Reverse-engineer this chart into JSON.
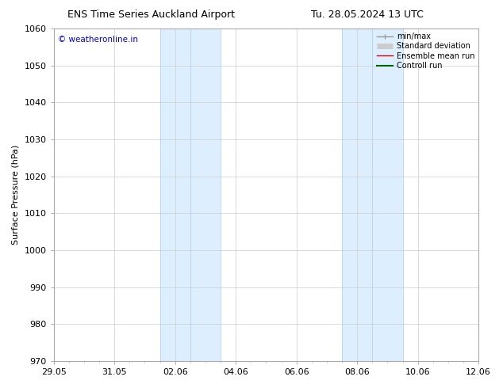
{
  "title": "ENS Time Series Auckland Airport",
  "title2": "Tu. 28.05.2024 13 UTC",
  "ylabel": "Surface Pressure (hPa)",
  "ylim": [
    970,
    1060
  ],
  "yticks": [
    970,
    980,
    990,
    1000,
    1010,
    1020,
    1030,
    1040,
    1050,
    1060
  ],
  "xtick_labels": [
    "29.05",
    "31.05",
    "02.06",
    "04.06",
    "06.06",
    "08.06",
    "10.06",
    "12.06"
  ],
  "xtick_positions": [
    0,
    2,
    4,
    6,
    8,
    10,
    12,
    14
  ],
  "xlim": [
    0,
    14
  ],
  "shaded_bands": [
    {
      "start": 3.5,
      "end": 5.5
    },
    {
      "start": 9.5,
      "end": 11.5
    }
  ],
  "shaded_color": "#ddeeff",
  "shaded_line_color": "#aaccee",
  "watermark": "© weatheronline.in",
  "watermark_color": "#0000cc",
  "background_color": "#ffffff",
  "legend_items": [
    {
      "label": "min/max",
      "color": "#999999",
      "lw": 1.0,
      "type": "line_caps"
    },
    {
      "label": "Standard deviation",
      "color": "#cccccc",
      "lw": 5,
      "type": "thick_line"
    },
    {
      "label": "Ensemble mean run",
      "color": "#cc0000",
      "lw": 1.0,
      "type": "line"
    },
    {
      "label": "Controll run",
      "color": "#006600",
      "lw": 1.5,
      "type": "line"
    }
  ],
  "grid_color": "#cccccc",
  "spine_color": "#aaaaaa",
  "title_fontsize": 9,
  "tick_fontsize": 8,
  "ylabel_fontsize": 8,
  "legend_fontsize": 7
}
